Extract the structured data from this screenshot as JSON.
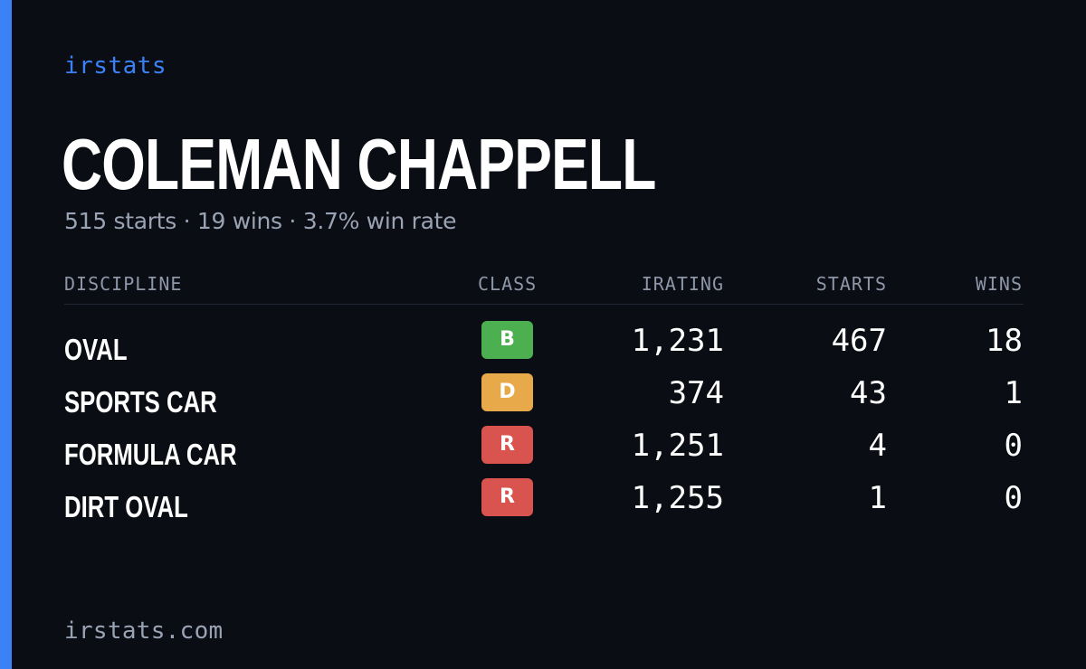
{
  "theme": {
    "background": "#0a0d14",
    "accent": "#3b82f6",
    "text_primary": "#ffffff",
    "text_muted": "#9aa3b4"
  },
  "brand": {
    "label": "irstats"
  },
  "player": {
    "name": "COLEMAN CHAPPELL",
    "summary": "515 starts · 19 wins · 3.7% win rate"
  },
  "table": {
    "headers": {
      "discipline": "DISCIPLINE",
      "class": "CLASS",
      "irating": "IRATING",
      "starts": "STARTS",
      "wins": "WINS"
    },
    "rows": [
      {
        "discipline": "OVAL",
        "class": "B",
        "class_color": "#4cb050",
        "irating": "1,231",
        "starts": "467",
        "wins": "18"
      },
      {
        "discipline": "SPORTS CAR",
        "class": "D",
        "class_color": "#e8a94a",
        "irating": "374",
        "starts": "43",
        "wins": "1"
      },
      {
        "discipline": "FORMULA CAR",
        "class": "R",
        "class_color": "#d9534f",
        "irating": "1,251",
        "starts": "4",
        "wins": "0"
      },
      {
        "discipline": "DIRT OVAL",
        "class": "R",
        "class_color": "#d9534f",
        "irating": "1,255",
        "starts": "1",
        "wins": "0"
      }
    ]
  },
  "footer": {
    "url": "irstats.com"
  }
}
